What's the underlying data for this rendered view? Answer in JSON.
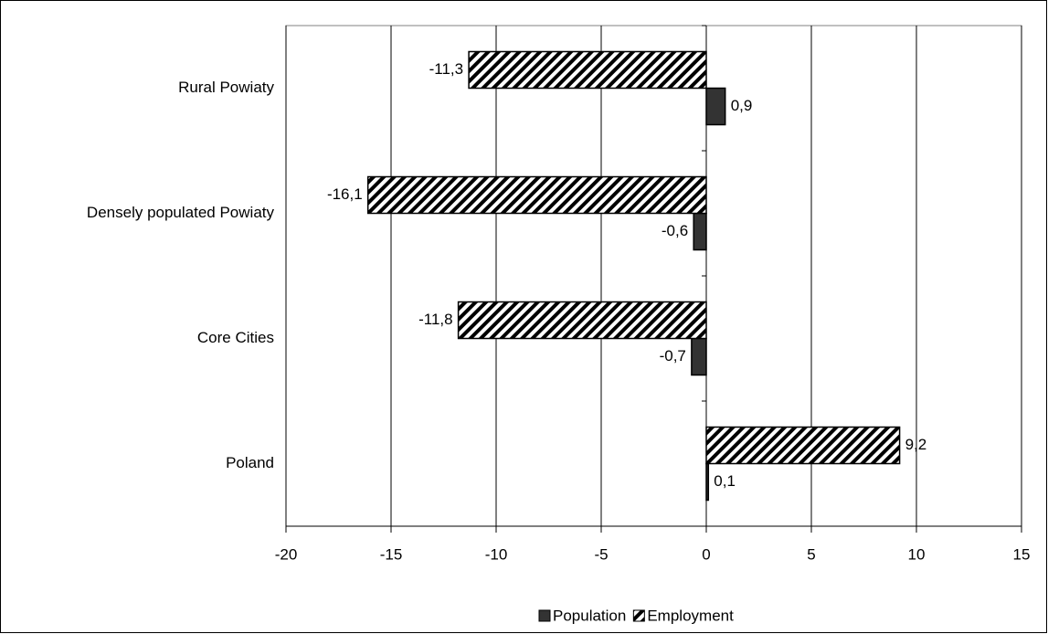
{
  "chart_data": {
    "type": "hbar",
    "categories": [
      "Rural Powiaty",
      "Densely populated Powiaty",
      "Core Cities",
      "Poland"
    ],
    "series": [
      {
        "name": "Population",
        "color": "#333333",
        "hatch": false,
        "values": [
          0.9,
          -0.6,
          -0.7,
          0.1
        ],
        "value_labels": [
          "0,9",
          "-0,6",
          "-0,7",
          "0,1"
        ]
      },
      {
        "name": "Employment",
        "color": "#000000",
        "hatch": true,
        "values": [
          -11.3,
          -16.1,
          -11.8,
          9.2
        ],
        "value_labels": [
          "-11,3",
          "-16,1",
          "-11,8",
          "9,2"
        ]
      }
    ],
    "xlim": [
      -20,
      15
    ],
    "xticks": [
      -20,
      -15,
      -10,
      -5,
      0,
      5,
      10,
      15
    ],
    "grid": true,
    "legend": "bottom"
  }
}
